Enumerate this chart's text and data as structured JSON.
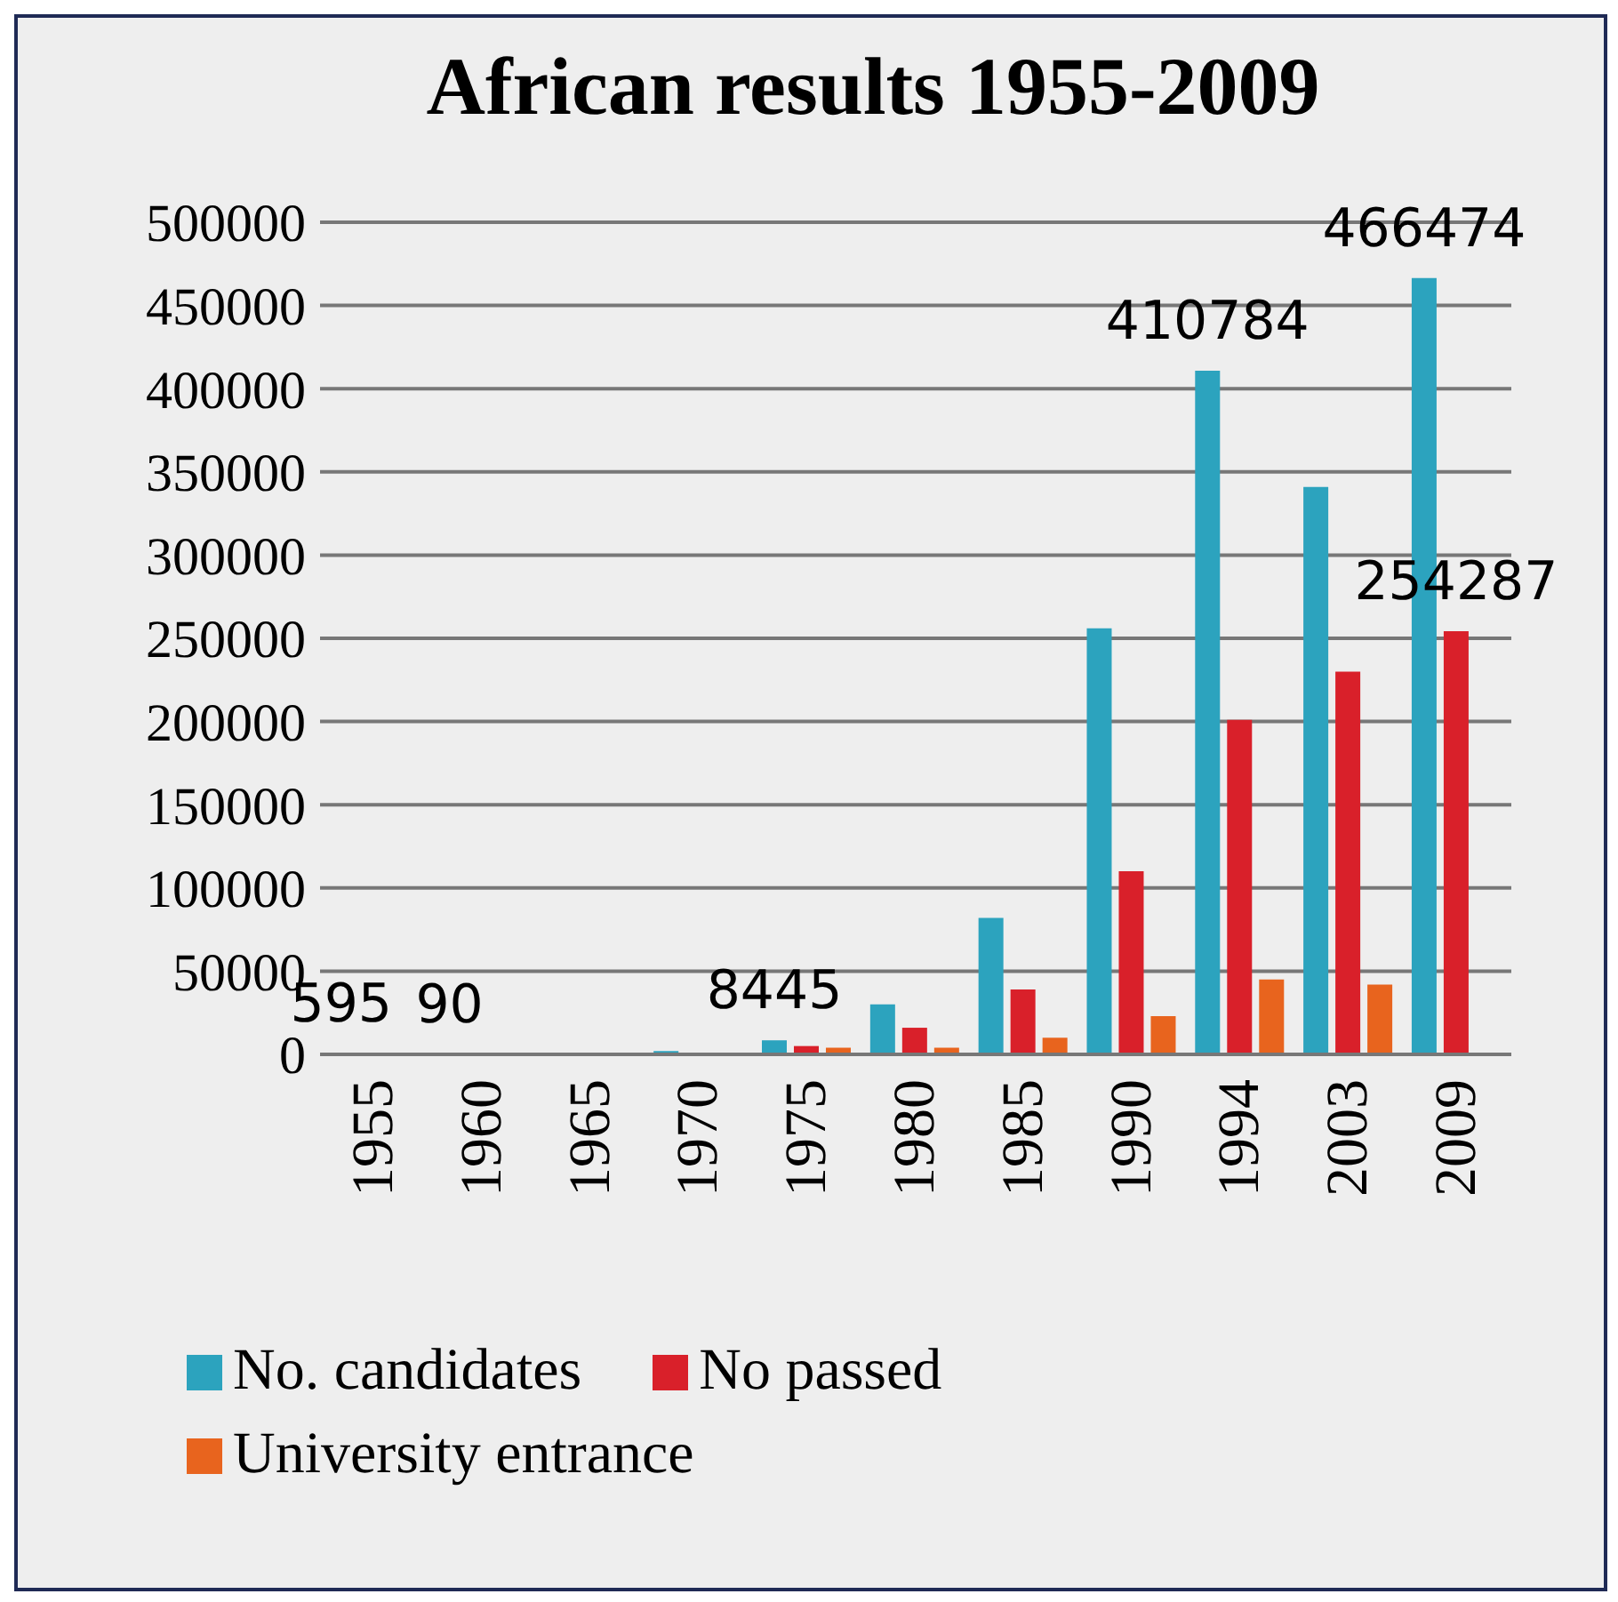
{
  "chart_data": {
    "type": "bar",
    "title": "African results 1955-2009",
    "categories": [
      "1955",
      "1960",
      "1965",
      "1970",
      "1975",
      "1980",
      "1985",
      "1990",
      "1994",
      "2003",
      "2009"
    ],
    "series": [
      {
        "name": "No. candidates",
        "color": "#2ca3be",
        "values": [
          595,
          90,
          1000,
          2000,
          8445,
          30000,
          82000,
          256000,
          410784,
          341000,
          466474
        ],
        "value_labels": [
          "595",
          "90",
          null,
          null,
          "8445",
          null,
          null,
          null,
          "410784",
          null,
          "466474"
        ]
      },
      {
        "name": "No passed",
        "color": "#d9202a",
        "values": [
          null,
          null,
          null,
          1000,
          5000,
          16000,
          39000,
          110000,
          201000,
          230000,
          254287
        ],
        "value_labels": [
          null,
          null,
          null,
          null,
          null,
          null,
          null,
          null,
          null,
          null,
          "254287"
        ]
      },
      {
        "name": "University entrance",
        "color": "#e8641e",
        "values": [
          null,
          null,
          null,
          null,
          4000,
          4000,
          10000,
          23000,
          45000,
          42000,
          null
        ]
      }
    ],
    "ylim": [
      0,
      500000
    ],
    "yticks": [
      0,
      50000,
      100000,
      150000,
      200000,
      250000,
      300000,
      350000,
      400000,
      450000,
      500000
    ],
    "grid": "y",
    "legend": "bottom"
  }
}
